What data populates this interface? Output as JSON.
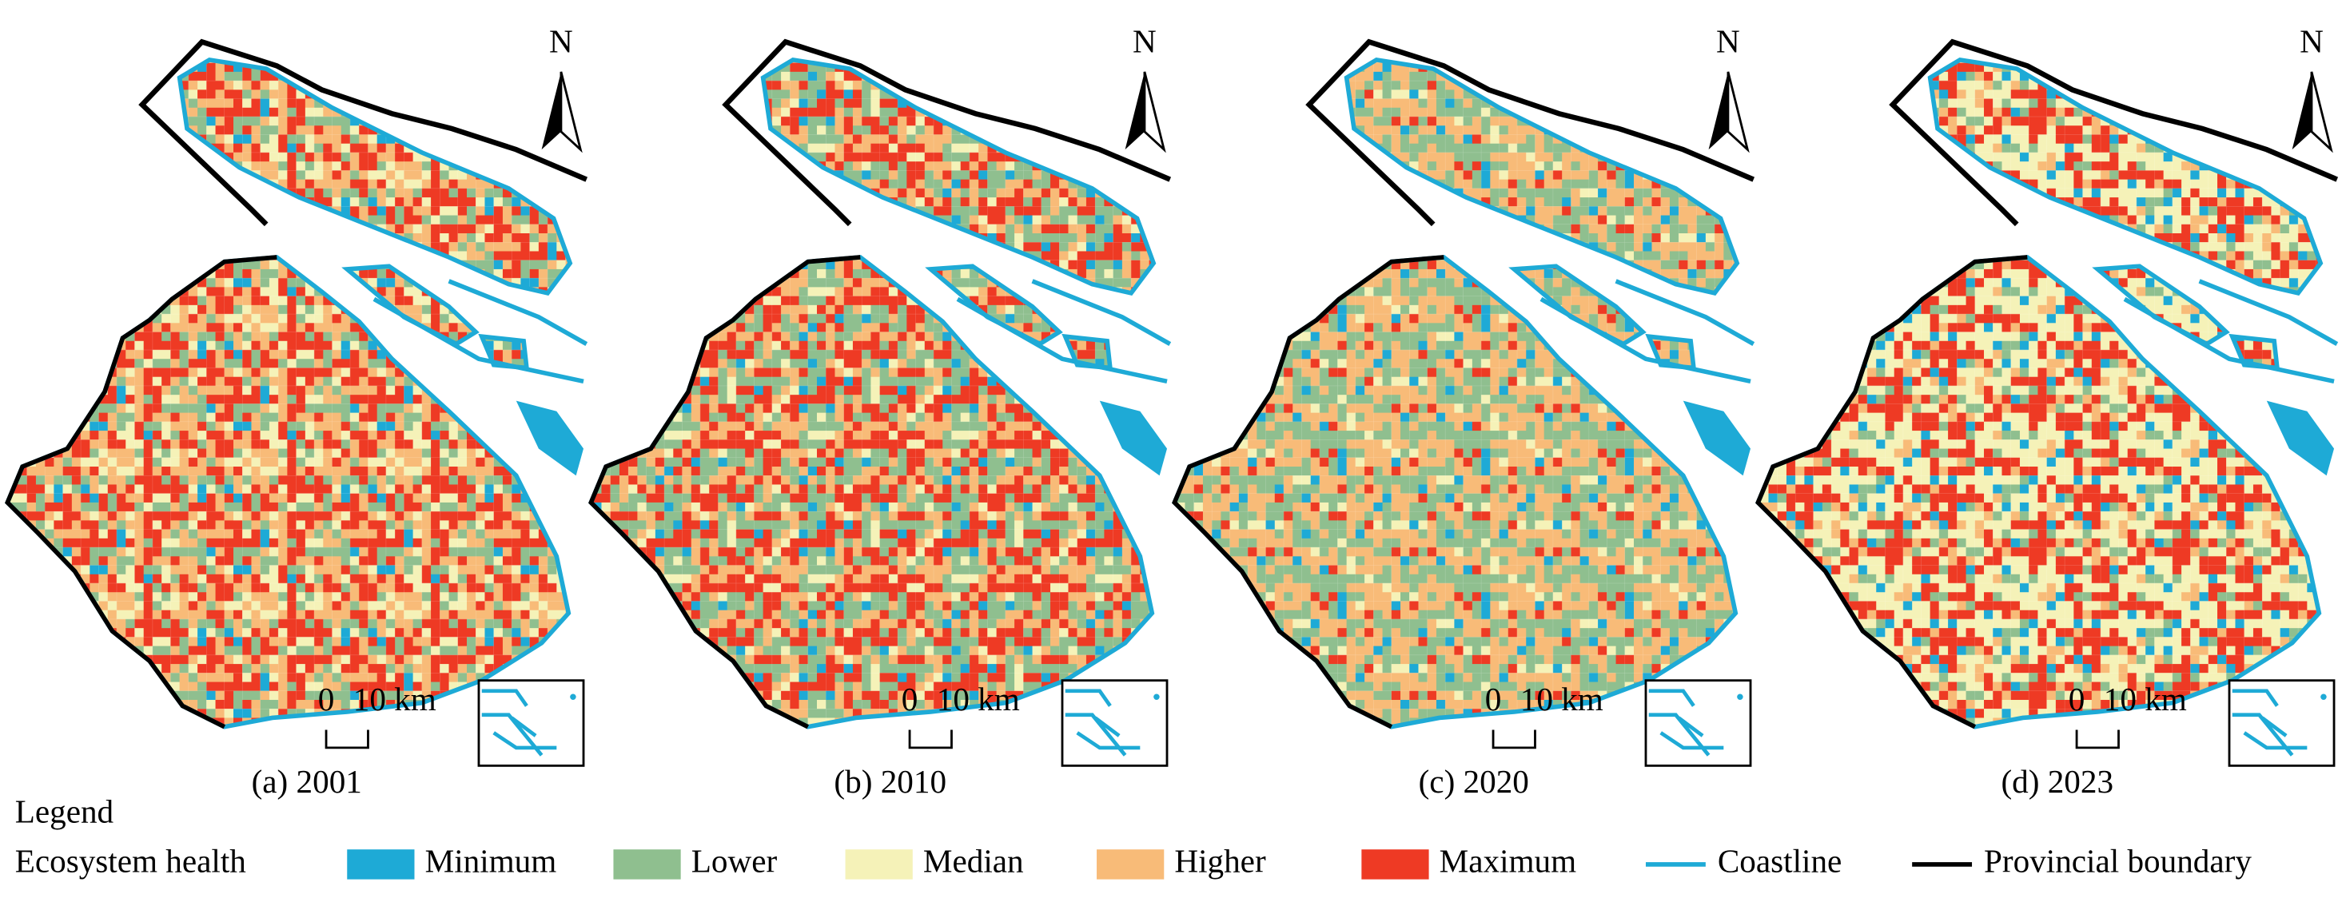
{
  "panels": [
    {
      "label": "(a) 2001",
      "north": "N",
      "scale_start": "0",
      "scale_end": "10 km"
    },
    {
      "label": "(b) 2010",
      "north": "N",
      "scale_start": "0",
      "scale_end": "10 km"
    },
    {
      "label": "(c) 2020",
      "north": "N",
      "scale_start": "0",
      "scale_end": "10 km"
    },
    {
      "label": "(d) 2023",
      "north": "N",
      "scale_start": "0",
      "scale_end": "10 km"
    }
  ],
  "legend": {
    "title": "Legend",
    "group": "Ecosystem health",
    "classes": [
      {
        "label": "Minimum",
        "color": "#1eaad6"
      },
      {
        "label": "Lower",
        "color": "#8fbf8f"
      },
      {
        "label": "Median",
        "color": "#f5f2b8"
      },
      {
        "label": "Higher",
        "color": "#f8bb78"
      },
      {
        "label": "Maximum",
        "color": "#ee3a24"
      }
    ],
    "lines": [
      {
        "label": "Coastline",
        "color": "#1eaad6"
      },
      {
        "label": "Provincial boundary",
        "color": "#000000"
      }
    ]
  }
}
